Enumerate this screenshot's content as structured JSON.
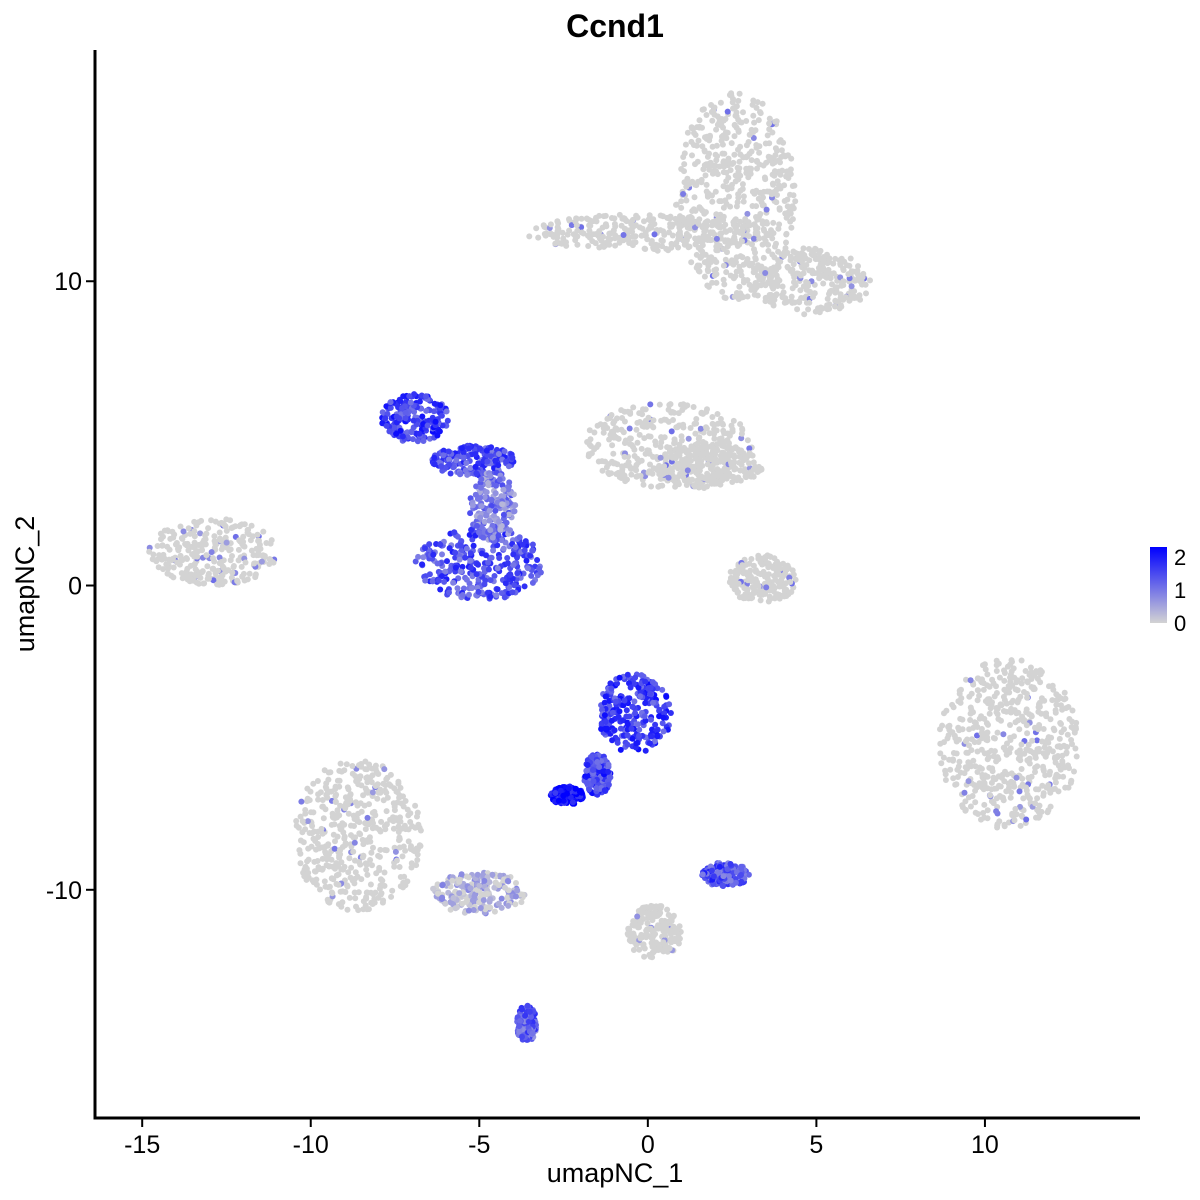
{
  "chart_data": {
    "type": "scatter",
    "title": "Ccnd1",
    "xlabel": "umapNC_1",
    "ylabel": "umapNC_2",
    "xlim": [
      -16.4,
      14.6
    ],
    "ylim": [
      -17.5,
      17.6
    ],
    "x_ticks": [
      -15,
      -10,
      -5,
      0,
      5,
      10
    ],
    "x_tick_labels": [
      "-15",
      "-10",
      "-5",
      "0",
      "5",
      "10"
    ],
    "y_ticks": [
      -10,
      0,
      10
    ],
    "y_tick_labels": [
      "-10",
      "0",
      "10"
    ],
    "grid": false,
    "legend": {
      "placement": "right",
      "type": "colorbar",
      "labels": [
        "2",
        "1",
        "0"
      ],
      "values": [
        2,
        1,
        0
      ],
      "min": 0,
      "max": 2.3
    },
    "colors": {
      "low": "#d3d3d3",
      "high": "#0000ff"
    },
    "clusters": [
      {
        "name": "top-right",
        "cx": 2.6,
        "cy": 12.8,
        "rx": 1.8,
        "ry": 3.4,
        "level": 0.05
      },
      {
        "name": "top-right-arm",
        "cx": 0.0,
        "cy": 11.6,
        "rx": 3.6,
        "ry": 0.6,
        "level": 0.05
      },
      {
        "name": "top-right-tail",
        "cx": 4.8,
        "cy": 10.0,
        "rx": 1.8,
        "ry": 1.1,
        "level": 0.08
      },
      {
        "name": "upper-mid-blob",
        "cx": 0.6,
        "cy": 4.6,
        "rx": 2.5,
        "ry": 1.4,
        "level": 0.05
      },
      {
        "name": "upper-mid-arm",
        "cx": 1.8,
        "cy": 3.9,
        "rx": 1.6,
        "ry": 0.7,
        "level": 0.05
      },
      {
        "name": "left-blob",
        "cx": -12.9,
        "cy": 1.1,
        "rx": 1.9,
        "ry": 1.1,
        "level": 0.05
      },
      {
        "name": "upper-left-expressing",
        "cx": -6.9,
        "cy": 5.5,
        "rx": 1.0,
        "ry": 0.8,
        "level": 1.6
      },
      {
        "name": "bridge-expressing",
        "cx": -5.2,
        "cy": 4.1,
        "rx": 1.3,
        "ry": 0.5,
        "level": 1.4
      },
      {
        "name": "center-expressing",
        "cx": -5.0,
        "cy": 0.7,
        "rx": 1.9,
        "ry": 1.2,
        "level": 1.4
      },
      {
        "name": "center-stem",
        "cx": -4.6,
        "cy": 2.6,
        "rx": 0.7,
        "ry": 1.2,
        "level": 0.9
      },
      {
        "name": "mid-right-small",
        "cx": 3.4,
        "cy": 0.2,
        "rx": 1.0,
        "ry": 0.8,
        "level": 0.05
      },
      {
        "name": "right-big",
        "cx": 10.7,
        "cy": -5.2,
        "rx": 2.1,
        "ry": 2.8,
        "level": 0.05
      },
      {
        "name": "lower-center-expressing",
        "cx": -0.4,
        "cy": -4.2,
        "rx": 1.1,
        "ry": 1.3,
        "level": 1.6
      },
      {
        "name": "lower-center-stem",
        "cx": -1.5,
        "cy": -6.2,
        "rx": 0.4,
        "ry": 0.7,
        "level": 1.6
      },
      {
        "name": "lower-center-end",
        "cx": -2.4,
        "cy": -6.9,
        "rx": 0.5,
        "ry": 0.3,
        "level": 2.2
      },
      {
        "name": "lower-left-blob",
        "cx": -8.6,
        "cy": -8.2,
        "rx": 1.9,
        "ry": 2.5,
        "level": 0.15
      },
      {
        "name": "lower-left-tail",
        "cx": -5.0,
        "cy": -10.1,
        "rx": 1.4,
        "ry": 0.7,
        "level": 0.3
      },
      {
        "name": "lower-right-small",
        "cx": 2.3,
        "cy": -9.5,
        "rx": 0.7,
        "ry": 0.4,
        "level": 1.4
      },
      {
        "name": "bottom-stem",
        "cx": 0.2,
        "cy": -11.4,
        "rx": 0.8,
        "ry": 0.9,
        "level": 0.1
      },
      {
        "name": "bottom-left-end",
        "cx": -3.6,
        "cy": -14.4,
        "rx": 0.3,
        "ry": 0.6,
        "level": 1.2
      }
    ]
  }
}
